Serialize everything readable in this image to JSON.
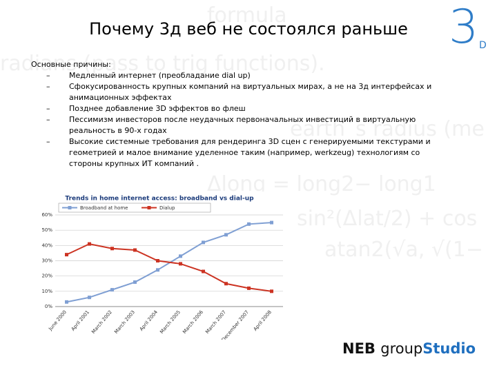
{
  "slide": {
    "title": "Почему 3д веб не состоялся раньше",
    "intro": "Основные причины:",
    "bullet_marker": "–",
    "bullets": [
      "Медленный интернет (преобладание dial up)",
      "Сфокусированность крупных компаний на виртуальных мирах, а не на 3д интерфейсах и анимационных эффектах",
      "Позднее добавление 3D эффектов во флеш",
      "Пессимизм инвесторов после неудачных первоначальных инвестиций в виртуальную реальность в 90-х годах",
      "Высокие системные требования для рендеринга 3D сцен с генерируемыми текстурами и геометрией и малое внимание уделенное таким (например, werkzeug) технологиям со стороны крупных ИТ компаний ."
    ],
    "background_text": [
      "formula",
      "radians (pass to trig functions).",
      "earth´s radius (me",
      "Δlong = long2− long1",
      "sin²(Δlat/2) + cos",
      "atan2(√a, √(1−"
    ],
    "logo": {
      "digit": "3",
      "letter": "D",
      "brand_1": "NEB",
      "brand_2": "group",
      "brand_3": "Studio"
    }
  },
  "chart_data": {
    "type": "line",
    "title": "Trends in home internet access: broadband vs dial-up",
    "categories": [
      "June 2000",
      "April 2001",
      "March 2002",
      "March 2003",
      "April 2004",
      "March 2005",
      "March 2006",
      "March 2007",
      "December 2007",
      "April 2008"
    ],
    "series": [
      {
        "name": "Broadband at home",
        "color": "#7f9fd3",
        "values": [
          3,
          6,
          11,
          16,
          24,
          33,
          42,
          47,
          54,
          55
        ]
      },
      {
        "name": "Dialup",
        "color": "#cc3322",
        "values": [
          34,
          41,
          38,
          37,
          30,
          28,
          23,
          15,
          12,
          10
        ]
      }
    ],
    "ylim": [
      0,
      60
    ],
    "yticks": [
      {
        "value": 0,
        "label": "0%"
      },
      {
        "value": 10,
        "label": "10%"
      },
      {
        "value": 20,
        "label": "20%"
      },
      {
        "value": 30,
        "label": "30%"
      },
      {
        "value": 40,
        "label": "40%"
      },
      {
        "value": 50,
        "label": "50%"
      },
      {
        "value": 60,
        "label": "60%"
      }
    ],
    "grid": true
  }
}
